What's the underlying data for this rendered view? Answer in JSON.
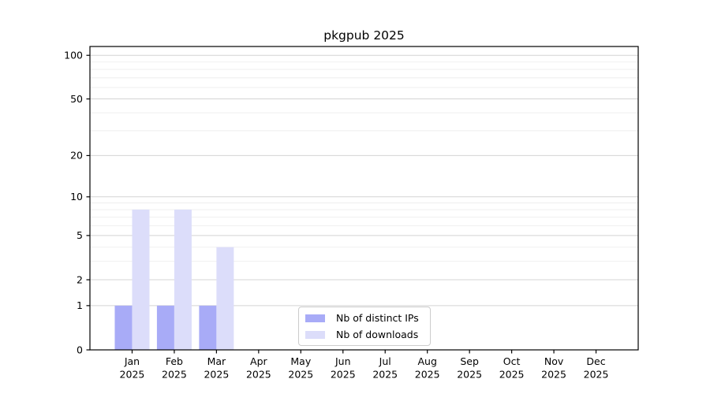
{
  "title": "pkgpub 2025",
  "colors": {
    "background": "#ffffff",
    "axis": "#000000",
    "text": "#000000",
    "grid_major": "#d4d4d4",
    "grid_minor": "#eeeeee",
    "legend_border": "#cccccc",
    "distinct_ips": "#a8abf7",
    "downloads": "#dcddfa"
  },
  "chart_data": {
    "type": "bar",
    "title": "pkgpub 2025",
    "categories": [
      "Jan",
      "Feb",
      "Mar",
      "Apr",
      "May",
      "Jun",
      "Jul",
      "Aug",
      "Sep",
      "Oct",
      "Nov",
      "Dec"
    ],
    "year_label": "2025",
    "series": [
      {
        "name": "Nb of distinct IPs",
        "color": "#a8abf7",
        "values": [
          1,
          1,
          1,
          0,
          0,
          0,
          0,
          0,
          0,
          0,
          0,
          0
        ]
      },
      {
        "name": "Nb of downloads",
        "color": "#dcddfa",
        "values": [
          8,
          8,
          4,
          0,
          0,
          0,
          0,
          0,
          0,
          0,
          0,
          0
        ]
      }
    ],
    "yscale": "symlog-log1p",
    "ylim": [
      0,
      115
    ],
    "y_ticks": [
      0,
      1,
      2,
      5,
      10,
      20,
      50,
      100
    ],
    "y_minor_ticks": [
      3,
      4,
      6,
      7,
      8,
      9,
      30,
      40,
      60,
      70,
      80,
      90
    ],
    "grid": true,
    "legend_position": "lower center",
    "xlabel": "",
    "ylabel": ""
  }
}
